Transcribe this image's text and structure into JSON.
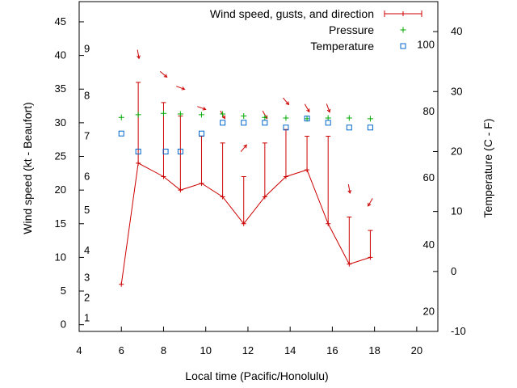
{
  "chart_data": {
    "type": "line",
    "title": "",
    "xlabel": "Local time (Pacific/Honolulu)",
    "ylabel": "Wind speed (kt - Beaufort)",
    "y2label": "Temperature (C - F)",
    "xlim": [
      4,
      21
    ],
    "ylim": [
      -1,
      48
    ],
    "y2lim": [
      -10,
      45
    ],
    "x_ticks": [
      "4",
      "6",
      "8",
      "10",
      "12",
      "14",
      "16",
      "18",
      "20"
    ],
    "y_ticks": [
      "0",
      "5",
      "10",
      "15",
      "20",
      "25",
      "30",
      "35",
      "40",
      "45"
    ],
    "y2_ticks": [
      "-10",
      "0",
      "10",
      "20",
      "30",
      "40"
    ],
    "beaufort_labels": [
      {
        "label": "1",
        "kt": 1
      },
      {
        "label": "2",
        "kt": 4
      },
      {
        "label": "3",
        "kt": 7
      },
      {
        "label": "4",
        "kt": 11
      },
      {
        "label": "5",
        "kt": 17
      },
      {
        "label": "6",
        "kt": 22
      },
      {
        "label": "7",
        "kt": 28
      },
      {
        "label": "8",
        "kt": 34
      },
      {
        "label": "9",
        "kt": 41
      }
    ],
    "fahrenheit_labels": [
      {
        "label": "20",
        "c": -6.7
      },
      {
        "label": "40",
        "c": 4.4
      },
      {
        "label": "60",
        "c": 15.6
      },
      {
        "label": "80",
        "c": 26.7
      },
      {
        "label": "100",
        "c": 37.8
      }
    ],
    "legend": {
      "position": "top-right",
      "entries": [
        "Wind speed, gusts, and direction",
        "Pressure",
        "Temperature"
      ]
    },
    "series": [
      {
        "name": "Wind speed, gusts, and direction",
        "color": "#cc0000",
        "points": [
          {
            "x": 6.0,
            "y": 6,
            "gust": null,
            "dir": null
          },
          {
            "x": 6.8,
            "y": 24,
            "gust": 36,
            "dir": 350
          },
          {
            "x": 8.0,
            "y": 22,
            "gust": 33,
            "dir": 310
          },
          {
            "x": 8.8,
            "y": 20,
            "gust": 31,
            "dir": 290
          },
          {
            "x": 9.8,
            "y": 21,
            "gust": 28,
            "dir": 290
          },
          {
            "x": 10.8,
            "y": 19,
            "gust": 27,
            "dir": 330
          },
          {
            "x": 11.8,
            "y": 15,
            "gust": 22,
            "dir": 220
          },
          {
            "x": 12.8,
            "y": 19,
            "gust": 27,
            "dir": 330
          },
          {
            "x": 13.8,
            "y": 22,
            "gust": 29,
            "dir": 320
          },
          {
            "x": 14.8,
            "y": 23,
            "gust": 28,
            "dir": 330
          },
          {
            "x": 15.8,
            "y": 15,
            "gust": 28,
            "dir": 340
          },
          {
            "x": 16.8,
            "y": 9,
            "gust": 16,
            "dir": 350
          },
          {
            "x": 17.8,
            "y": 10,
            "gust": 14,
            "dir": 30
          }
        ]
      },
      {
        "name": "Pressure",
        "color": "#00aa00",
        "points": [
          {
            "x": 6.0,
            "y": 30.8
          },
          {
            "x": 6.8,
            "y": 31.2
          },
          {
            "x": 8.0,
            "y": 31.4
          },
          {
            "x": 8.8,
            "y": 31.3
          },
          {
            "x": 9.8,
            "y": 31.2
          },
          {
            "x": 10.8,
            "y": 31.3
          },
          {
            "x": 11.8,
            "y": 31.0
          },
          {
            "x": 12.8,
            "y": 30.8
          },
          {
            "x": 13.8,
            "y": 30.7
          },
          {
            "x": 14.8,
            "y": 30.6
          },
          {
            "x": 15.8,
            "y": 30.7
          },
          {
            "x": 16.8,
            "y": 30.7
          },
          {
            "x": 17.8,
            "y": 30.6
          }
        ]
      },
      {
        "name": "Temperature",
        "color": "#0066cc",
        "points": [
          {
            "x": 6.0,
            "y": 23.0
          },
          {
            "x": 6.8,
            "y": 20.0
          },
          {
            "x": 8.1,
            "y": 20.0
          },
          {
            "x": 8.8,
            "y": 20.0
          },
          {
            "x": 9.8,
            "y": 23.0
          },
          {
            "x": 10.8,
            "y": 24.8
          },
          {
            "x": 11.8,
            "y": 24.8
          },
          {
            "x": 12.8,
            "y": 24.8
          },
          {
            "x": 13.8,
            "y": 24.0
          },
          {
            "x": 14.8,
            "y": 25.5
          },
          {
            "x": 15.8,
            "y": 24.8
          },
          {
            "x": 16.8,
            "y": 24.0
          },
          {
            "x": 17.8,
            "y": 24.0
          }
        ]
      }
    ]
  }
}
